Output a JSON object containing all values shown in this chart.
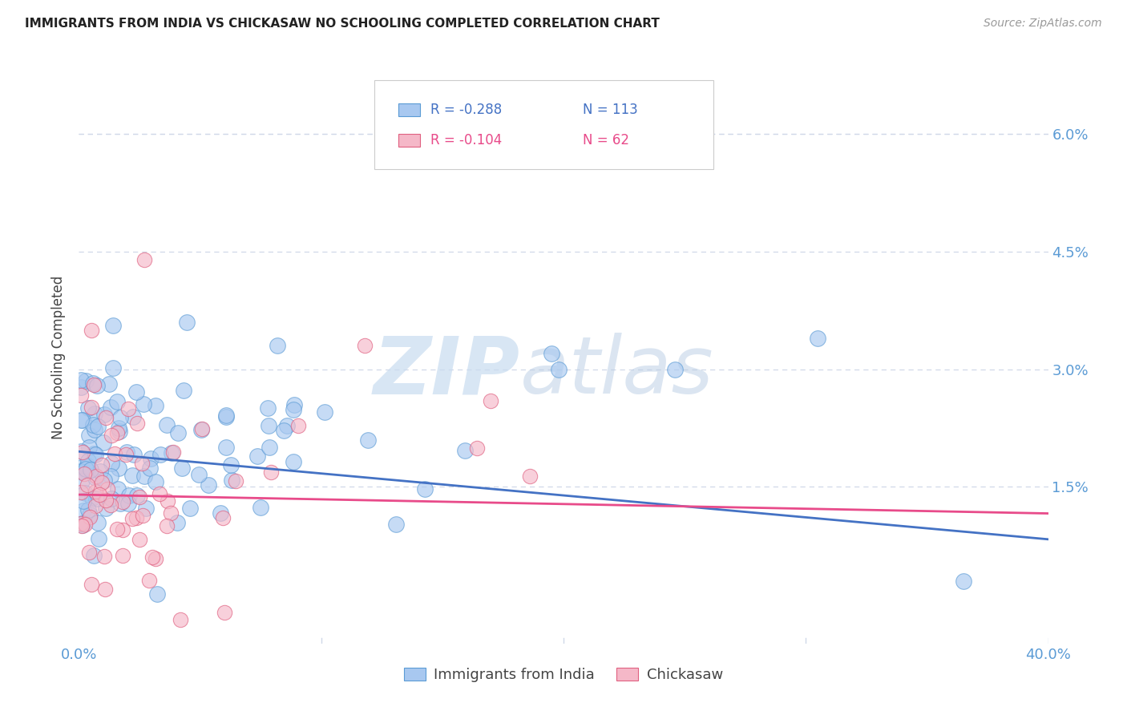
{
  "title": "IMMIGRANTS FROM INDIA VS CHICKASAW NO SCHOOLING COMPLETED CORRELATION CHART",
  "source": "Source: ZipAtlas.com",
  "ylabel": "No Schooling Completed",
  "xlim": [
    0.0,
    0.4
  ],
  "ylim": [
    -0.005,
    0.068
  ],
  "ytick_vals": [
    0.0,
    0.015,
    0.03,
    0.045,
    0.06
  ],
  "ytick_labels": [
    "",
    "1.5%",
    "3.0%",
    "4.5%",
    "6.0%"
  ],
  "xtick_vals": [
    0.0,
    0.1,
    0.2,
    0.3,
    0.4
  ],
  "xtick_labels": [
    "0.0%",
    "",
    "",
    "",
    "40.0%"
  ],
  "legend_r1": "R = -0.288",
  "legend_n1": "N = 113",
  "legend_r2": "R = -0.104",
  "legend_n2": "N = 62",
  "color_india_fill": "#A8C8F0",
  "color_india_edge": "#5B9BD5",
  "color_chickasaw_fill": "#F5B8C8",
  "color_chickasaw_edge": "#E06080",
  "color_line_india": "#4472C4",
  "color_line_chickasaw": "#E84B8A",
  "color_tick_label": "#5B9BD5",
  "color_grid": "#D0D8E8",
  "india_intercept": 0.0195,
  "india_slope": -0.028,
  "chickasaw_intercept": 0.014,
  "chickasaw_slope": -0.006
}
